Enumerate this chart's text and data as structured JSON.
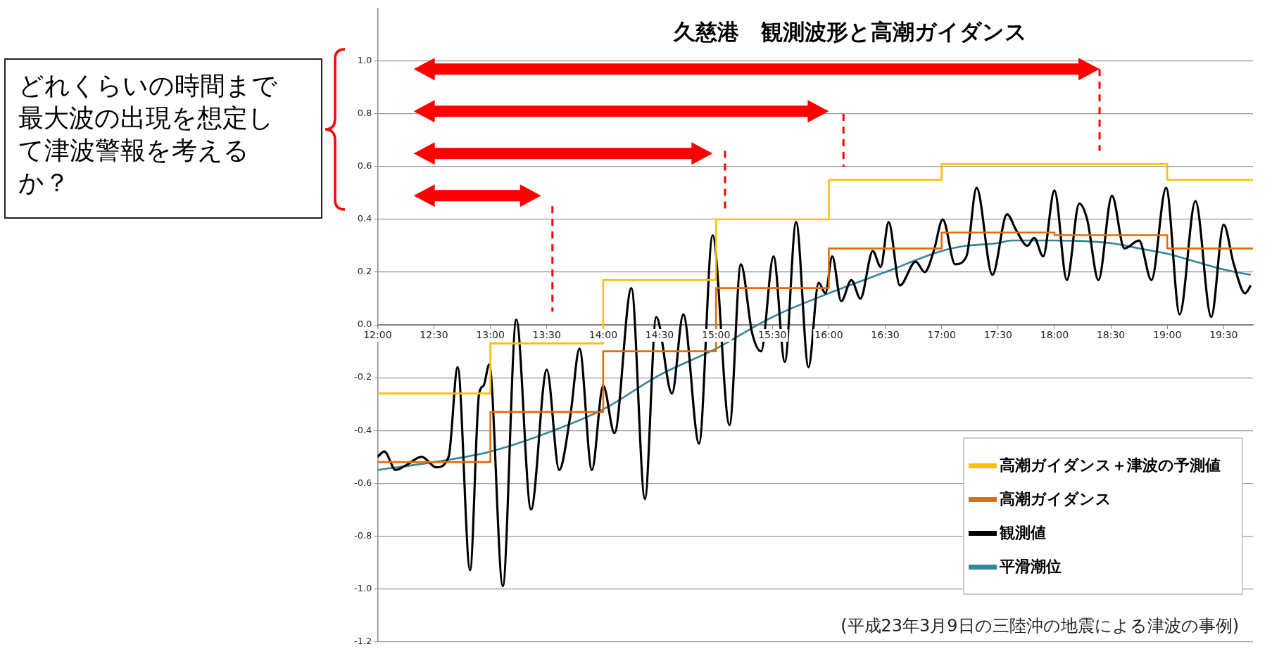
{
  "chart_data": {
    "type": "line",
    "title": "久慈港　観測波形と高潮ガイダンス",
    "annotations": [
      "どれくらいの時間まで最大波の出現を想定して津波警報を考えるか？",
      "(平成23年3月9日の三陸沖の地震による津波の事例)"
    ],
    "xlim": [
      12,
      19.76
    ],
    "xticks": [
      {
        "value": 12,
        "label": "12:00"
      },
      {
        "value": 12.5,
        "label": "12:30"
      },
      {
        "value": 13,
        "label": "13:00"
      },
      {
        "value": 13.5,
        "label": "13:30"
      },
      {
        "value": 14,
        "label": "14:00"
      },
      {
        "value": 14.5,
        "label": "14:30"
      },
      {
        "value": 15,
        "label": "15:00"
      },
      {
        "value": 15.5,
        "label": "15:30"
      },
      {
        "value": 16,
        "label": "16:00"
      },
      {
        "value": 16.5,
        "label": "16:30"
      },
      {
        "value": 17,
        "label": "17:00"
      },
      {
        "value": 17.5,
        "label": "17:30"
      },
      {
        "value": 18,
        "label": "18:00"
      },
      {
        "value": 18.5,
        "label": "18:30"
      },
      {
        "value": 19,
        "label": "19:00"
      },
      {
        "value": 19.5,
        "label": "19:30"
      }
    ],
    "ylim": [
      -1.2,
      1.2
    ],
    "yticks": [
      {
        "value": -1.2,
        "label": "-1.2"
      },
      {
        "value": -1,
        "label": "-1.0"
      },
      {
        "value": -0.8,
        "label": "-0.8"
      },
      {
        "value": -0.6,
        "label": "-0.6"
      },
      {
        "value": -0.4,
        "label": "-0.4"
      },
      {
        "value": -0.2,
        "label": "-0.2"
      },
      {
        "value": 0,
        "label": "0.0"
      },
      {
        "value": 0.2,
        "label": "0.2"
      },
      {
        "value": 0.4,
        "label": "0.4"
      },
      {
        "value": 0.6,
        "label": "0.6"
      },
      {
        "value": 0.8,
        "label": "0.8"
      },
      {
        "value": 1,
        "label": "1.0"
      }
    ],
    "grid": "y",
    "legend": "bottom right",
    "marker": "none",
    "line_style": "solid",
    "series": [
      {
        "name": "高潮ガイダンス＋津波の予測値",
        "type": "step",
        "color": "#ffc000",
        "x": [
          12,
          13,
          14,
          15,
          16,
          17,
          18,
          19,
          19.76
        ],
        "values": [
          -0.26,
          -0.07,
          0.17,
          0.4,
          0.55,
          0.61,
          0.61,
          0.55,
          0.55
        ]
      },
      {
        "name": "高潮ガイダンス",
        "type": "step",
        "color": "#e36c09",
        "x": [
          12,
          13,
          14,
          15,
          16,
          17,
          18,
          19,
          19.76
        ],
        "values": [
          -0.52,
          -0.33,
          -0.1,
          0.14,
          0.29,
          0.35,
          0.34,
          0.29,
          0.29
        ]
      },
      {
        "name": "観測値",
        "type": "line",
        "color": "#000000",
        "x": [
          12,
          12.06,
          12.16,
          12.26,
          12.39,
          12.52,
          12.63,
          12.71,
          12.82,
          12.9,
          12.94,
          12.99,
          13.11,
          13.23,
          13.36,
          13.5,
          13.61,
          13.71,
          13.79,
          13.9,
          14,
          14.1,
          14.25,
          14.37,
          14.47,
          14.61,
          14.71,
          14.85,
          14.97,
          15.12,
          15.22,
          15.32,
          15.4,
          15.51,
          15.61,
          15.71,
          15.82,
          15.91,
          15.97,
          16.03,
          16.11,
          16.2,
          16.28,
          16.39,
          16.46,
          16.53,
          16.63,
          16.77,
          16.85,
          16.93,
          17.01,
          17.12,
          17.22,
          17.31,
          17.45,
          17.58,
          17.66,
          17.76,
          17.82,
          17.9,
          18,
          18.11,
          18.22,
          18.29,
          18.39,
          18.51,
          18.62,
          18.75,
          18.86,
          18.99,
          19.11,
          19.25,
          19.39,
          19.5,
          19.59,
          19.69,
          19.74
        ],
        "values": [
          -0.5,
          -0.48,
          -0.55,
          -0.53,
          -0.5,
          -0.54,
          -0.5,
          -0.16,
          -0.93,
          -0.26,
          -0.23,
          -0.15,
          -0.99,
          0.02,
          -0.7,
          -0.17,
          -0.55,
          -0.34,
          -0.09,
          -0.55,
          -0.23,
          -0.41,
          0.14,
          -0.66,
          0.03,
          -0.26,
          0.04,
          -0.45,
          0.34,
          -0.38,
          0.23,
          -0.03,
          -0.1,
          0.26,
          -0.14,
          0.39,
          -0.16,
          0.16,
          0.12,
          0.26,
          0.09,
          0.17,
          0.1,
          0.28,
          0.22,
          0.39,
          0.15,
          0.24,
          0.2,
          0.28,
          0.4,
          0.23,
          0.26,
          0.52,
          0.19,
          0.42,
          0.36,
          0.3,
          0.33,
          0.26,
          0.51,
          0.17,
          0.46,
          0.4,
          0.17,
          0.49,
          0.29,
          0.32,
          0.17,
          0.52,
          0.04,
          0.47,
          0.03,
          0.38,
          0.23,
          0.12,
          0.15
        ]
      },
      {
        "name": "平滑潮位",
        "type": "line",
        "color": "#31859c",
        "x": [
          12,
          12.5,
          13,
          13.5,
          14,
          14.5,
          15,
          15.5,
          16,
          16.5,
          17,
          17.22,
          17.5,
          17.62,
          18,
          18.5,
          18.75,
          19,
          19.25,
          19.5,
          19.74
        ],
        "values": [
          -0.55,
          -0.52,
          -0.48,
          -0.41,
          -0.32,
          -0.19,
          -0.09,
          0.03,
          0.12,
          0.2,
          0.28,
          0.3,
          0.31,
          0.32,
          0.32,
          0.31,
          0.29,
          0.27,
          0.24,
          0.21,
          0.19
        ]
      }
    ]
  }
}
